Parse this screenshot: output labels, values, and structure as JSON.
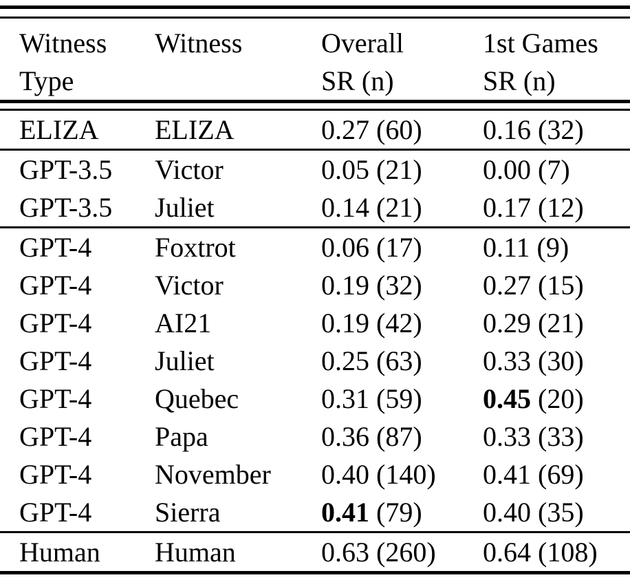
{
  "table": {
    "title": "witness-success-rate-table",
    "headers": [
      {
        "line1": "Witness",
        "line2": "Type"
      },
      {
        "line1": "Witness",
        "line2": ""
      },
      {
        "line1": "Overall",
        "line2": "SR (n)"
      },
      {
        "line1": "1st Games",
        "line2": "SR (n)"
      }
    ],
    "groups": [
      {
        "rows": [
          {
            "type": "ELIZA",
            "witness": "ELIZA",
            "overall_sr": "0.27",
            "overall_n": "(60)",
            "overall_bold": false,
            "first_sr": "0.16",
            "first_n": "(32)",
            "first_bold": false
          }
        ]
      },
      {
        "rows": [
          {
            "type": "GPT-3.5",
            "witness": "Victor",
            "overall_sr": "0.05",
            "overall_n": "(21)",
            "overall_bold": false,
            "first_sr": "0.00",
            "first_n": "(7)",
            "first_bold": false
          },
          {
            "type": "GPT-3.5",
            "witness": "Juliet",
            "overall_sr": "0.14",
            "overall_n": "(21)",
            "overall_bold": false,
            "first_sr": "0.17",
            "first_n": "(12)",
            "first_bold": false
          }
        ]
      },
      {
        "rows": [
          {
            "type": "GPT-4",
            "witness": "Foxtrot",
            "overall_sr": "0.06",
            "overall_n": "(17)",
            "overall_bold": false,
            "first_sr": "0.11",
            "first_n": "(9)",
            "first_bold": false
          },
          {
            "type": "GPT-4",
            "witness": "Victor",
            "overall_sr": "0.19",
            "overall_n": "(32)",
            "overall_bold": false,
            "first_sr": "0.27",
            "first_n": "(15)",
            "first_bold": false
          },
          {
            "type": "GPT-4",
            "witness": "AI21",
            "overall_sr": "0.19",
            "overall_n": "(42)",
            "overall_bold": false,
            "first_sr": "0.29",
            "first_n": "(21)",
            "first_bold": false
          },
          {
            "type": "GPT-4",
            "witness": "Juliet",
            "overall_sr": "0.25",
            "overall_n": "(63)",
            "overall_bold": false,
            "first_sr": "0.33",
            "first_n": "(30)",
            "first_bold": false
          },
          {
            "type": "GPT-4",
            "witness": "Quebec",
            "overall_sr": "0.31",
            "overall_n": "(59)",
            "overall_bold": false,
            "first_sr": "0.45",
            "first_n": "(20)",
            "first_bold": true
          },
          {
            "type": "GPT-4",
            "witness": "Papa",
            "overall_sr": "0.36",
            "overall_n": "(87)",
            "overall_bold": false,
            "first_sr": "0.33",
            "first_n": "(33)",
            "first_bold": false
          },
          {
            "type": "GPT-4",
            "witness": "November",
            "overall_sr": "0.40",
            "overall_n": "(140)",
            "overall_bold": false,
            "first_sr": "0.41",
            "first_n": "(69)",
            "first_bold": false
          },
          {
            "type": "GPT-4",
            "witness": "Sierra",
            "overall_sr": "0.41",
            "overall_n": "(79)",
            "overall_bold": true,
            "first_sr": "0.40",
            "first_n": "(35)",
            "first_bold": false
          }
        ]
      },
      {
        "rows": [
          {
            "type": "Human",
            "witness": "Human",
            "overall_sr": "0.63",
            "overall_n": "(260)",
            "overall_bold": false,
            "first_sr": "0.64",
            "first_n": "(108)",
            "first_bold": false
          }
        ]
      }
    ],
    "colors": {
      "text": "#000000",
      "background": "#ffffff",
      "rule": "#000000"
    }
  }
}
